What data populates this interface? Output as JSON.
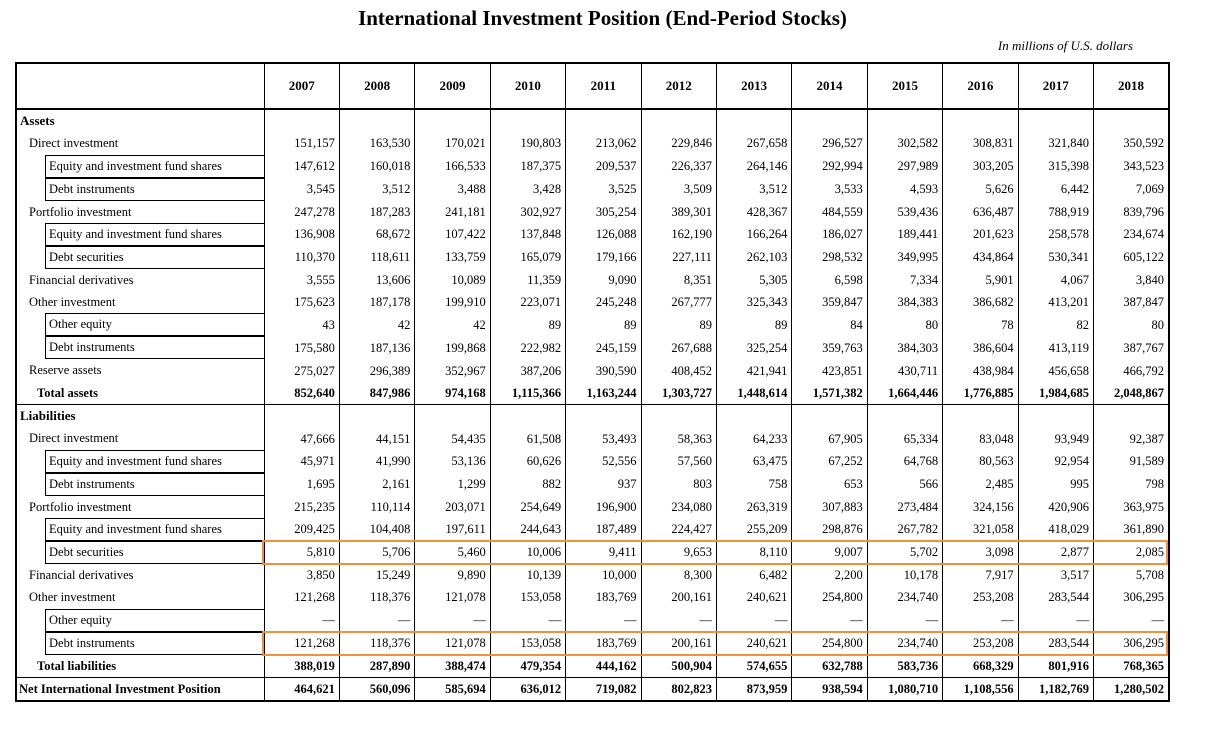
{
  "header": {
    "title": "International Investment Position (End-Period Stocks)",
    "subtitle": "In millions of U.S. dollars"
  },
  "table": {
    "columns": [
      "2007",
      "2008",
      "2009",
      "2010",
      "2011",
      "2012",
      "2013",
      "2014",
      "2015",
      "2016",
      "2017",
      "2018"
    ],
    "rows": [
      {
        "label": "Assets",
        "kind": "section"
      },
      {
        "label": "Direct investment",
        "kind": "item",
        "values": [
          "151,157",
          "163,530",
          "170,021",
          "190,803",
          "213,062",
          "229,846",
          "267,658",
          "296,527",
          "302,582",
          "308,831",
          "321,840",
          "350,592"
        ]
      },
      {
        "label": "Equity and investment fund shares",
        "kind": "sub",
        "values": [
          "147,612",
          "160,018",
          "166,533",
          "187,375",
          "209,537",
          "226,337",
          "264,146",
          "292,994",
          "297,989",
          "303,205",
          "315,398",
          "343,523"
        ]
      },
      {
        "label": "Debt instruments",
        "kind": "sub",
        "values": [
          "3,545",
          "3,512",
          "3,488",
          "3,428",
          "3,525",
          "3,509",
          "3,512",
          "3,533",
          "4,593",
          "5,626",
          "6,442",
          "7,069"
        ]
      },
      {
        "label": "Portfolio investment",
        "kind": "item",
        "values": [
          "247,278",
          "187,283",
          "241,181",
          "302,927",
          "305,254",
          "389,301",
          "428,367",
          "484,559",
          "539,436",
          "636,487",
          "788,919",
          "839,796"
        ]
      },
      {
        "label": "Equity and investment fund shares",
        "kind": "sub",
        "values": [
          "136,908",
          "68,672",
          "107,422",
          "137,848",
          "126,088",
          "162,190",
          "166,264",
          "186,027",
          "189,441",
          "201,623",
          "258,578",
          "234,674"
        ]
      },
      {
        "label": "Debt securities",
        "kind": "sub",
        "values": [
          "110,370",
          "118,611",
          "133,759",
          "165,079",
          "179,166",
          "227,111",
          "262,103",
          "298,532",
          "349,995",
          "434,864",
          "530,341",
          "605,122"
        ]
      },
      {
        "label": "Financial derivatives",
        "kind": "item",
        "values": [
          "3,555",
          "13,606",
          "10,089",
          "11,359",
          "9,090",
          "8,351",
          "5,305",
          "6,598",
          "7,334",
          "5,901",
          "4,067",
          "3,840"
        ]
      },
      {
        "label": "Other investment",
        "kind": "item",
        "values": [
          "175,623",
          "187,178",
          "199,910",
          "223,071",
          "245,248",
          "267,777",
          "325,343",
          "359,847",
          "384,383",
          "386,682",
          "413,201",
          "387,847"
        ]
      },
      {
        "label": "Other equity",
        "kind": "sub",
        "values": [
          "43",
          "42",
          "42",
          "89",
          "89",
          "89",
          "89",
          "84",
          "80",
          "78",
          "82",
          "80"
        ]
      },
      {
        "label": "Debt instruments",
        "kind": "sub",
        "values": [
          "175,580",
          "187,136",
          "199,868",
          "222,982",
          "245,159",
          "267,688",
          "325,254",
          "359,763",
          "384,303",
          "386,604",
          "413,119",
          "387,767"
        ]
      },
      {
        "label": "Reserve assets",
        "kind": "item",
        "values": [
          "275,027",
          "296,389",
          "352,967",
          "387,206",
          "390,590",
          "408,452",
          "421,941",
          "423,851",
          "430,711",
          "438,984",
          "456,658",
          "466,792"
        ]
      },
      {
        "label": "Total assets",
        "kind": "total",
        "values": [
          "852,640",
          "847,986",
          "974,168",
          "1,115,366",
          "1,163,244",
          "1,303,727",
          "1,448,614",
          "1,571,382",
          "1,664,446",
          "1,776,885",
          "1,984,685",
          "2,048,867"
        ]
      },
      {
        "label": "Liabilities",
        "kind": "section"
      },
      {
        "label": "Direct investment",
        "kind": "item",
        "values": [
          "47,666",
          "44,151",
          "54,435",
          "61,508",
          "53,493",
          "58,363",
          "64,233",
          "67,905",
          "65,334",
          "83,048",
          "93,949",
          "92,387"
        ]
      },
      {
        "label": "Equity and investment fund shares",
        "kind": "sub",
        "values": [
          "45,971",
          "41,990",
          "53,136",
          "60,626",
          "52,556",
          "57,560",
          "63,475",
          "67,252",
          "64,768",
          "80,563",
          "92,954",
          "91,589"
        ]
      },
      {
        "label": "Debt instruments",
        "kind": "sub",
        "values": [
          "1,695",
          "2,161",
          "1,299",
          "882",
          "937",
          "803",
          "758",
          "653",
          "566",
          "2,485",
          "995",
          "798"
        ]
      },
      {
        "label": "Portfolio investment",
        "kind": "item",
        "values": [
          "215,235",
          "110,114",
          "203,071",
          "254,649",
          "196,900",
          "234,080",
          "263,319",
          "307,883",
          "273,484",
          "324,156",
          "420,906",
          "363,975"
        ]
      },
      {
        "label": "Equity and investment fund shares",
        "kind": "sub",
        "values": [
          "209,425",
          "104,408",
          "197,611",
          "244,643",
          "187,489",
          "224,427",
          "255,209",
          "298,876",
          "267,782",
          "321,058",
          "418,029",
          "361,890"
        ]
      },
      {
        "label": "Debt securities",
        "kind": "sub",
        "highlight": true,
        "values": [
          "5,810",
          "5,706",
          "5,460",
          "10,006",
          "9,411",
          "9,653",
          "8,110",
          "9,007",
          "5,702",
          "3,098",
          "2,877",
          "2,085"
        ]
      },
      {
        "label": "Financial derivatives",
        "kind": "item",
        "values": [
          "3,850",
          "15,249",
          "9,890",
          "10,139",
          "10,000",
          "8,300",
          "6,482",
          "2,200",
          "10,178",
          "7,917",
          "3,517",
          "5,708"
        ]
      },
      {
        "label": "Other investment",
        "kind": "item",
        "values": [
          "121,268",
          "118,376",
          "121,078",
          "153,058",
          "183,769",
          "200,161",
          "240,621",
          "254,800",
          "234,740",
          "253,208",
          "283,544",
          "306,295"
        ]
      },
      {
        "label": "Other equity",
        "kind": "sub",
        "values": [
          "—",
          "—",
          "—",
          "—",
          "—",
          "—",
          "—",
          "—",
          "—",
          "—",
          "—",
          "—"
        ]
      },
      {
        "label": "Debt instruments",
        "kind": "sub",
        "highlight": true,
        "values": [
          "121,268",
          "118,376",
          "121,078",
          "153,058",
          "183,769",
          "200,161",
          "240,621",
          "254,800",
          "234,740",
          "253,208",
          "283,544",
          "306,295"
        ]
      },
      {
        "label": "Total liabilities",
        "kind": "total",
        "values": [
          "388,019",
          "287,890",
          "388,474",
          "479,354",
          "444,162",
          "500,904",
          "574,655",
          "632,788",
          "583,736",
          "668,329",
          "801,916",
          "768,365"
        ]
      },
      {
        "label": "Net International Investment Position",
        "kind": "net",
        "values": [
          "464,621",
          "560,096",
          "585,694",
          "636,012",
          "719,082",
          "802,823",
          "873,959",
          "938,594",
          "1,080,710",
          "1,108,556",
          "1,182,769",
          "1,280,502"
        ]
      }
    ]
  }
}
